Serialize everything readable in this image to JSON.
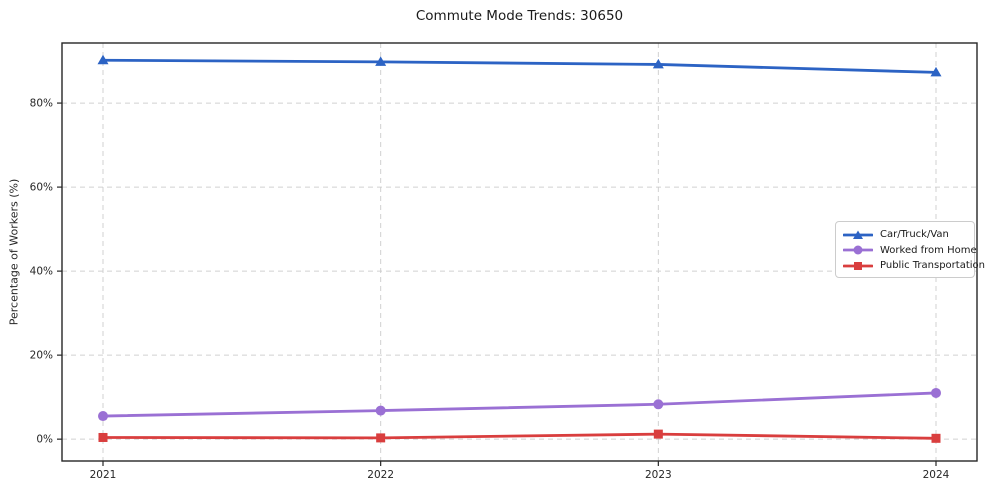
{
  "chart_data": {
    "type": "line",
    "title": "Commute Mode Trends: 30650",
    "xlabel": "",
    "ylabel": "Percentage of Workers (%)",
    "categories": [
      "2021",
      "2022",
      "2023",
      "2024"
    ],
    "yticks": [
      0,
      20,
      40,
      60,
      80
    ],
    "ytick_labels": [
      "0%",
      "20%",
      "40%",
      "60%",
      "80%"
    ],
    "ylim": [
      -5.2,
      94.3
    ],
    "grid": true,
    "grid_style": "dashed",
    "legend_position": "center-right",
    "series": [
      {
        "name": "Car/Truck/Van",
        "marker": "triangle",
        "color": "#2c63c4",
        "values": [
          90.2,
          89.8,
          89.2,
          87.3
        ]
      },
      {
        "name": "Worked from Home",
        "marker": "circle",
        "color": "#9a70d4",
        "values": [
          5.5,
          6.8,
          8.3,
          11.0
        ]
      },
      {
        "name": "Public Transportation",
        "marker": "square",
        "color": "#d93e3e",
        "values": [
          0.4,
          0.3,
          1.2,
          0.2
        ]
      }
    ],
    "colors": {
      "grid": "#cccccc",
      "axis": "#262626",
      "tick_label": "#262626",
      "background": "#ffffff"
    }
  }
}
